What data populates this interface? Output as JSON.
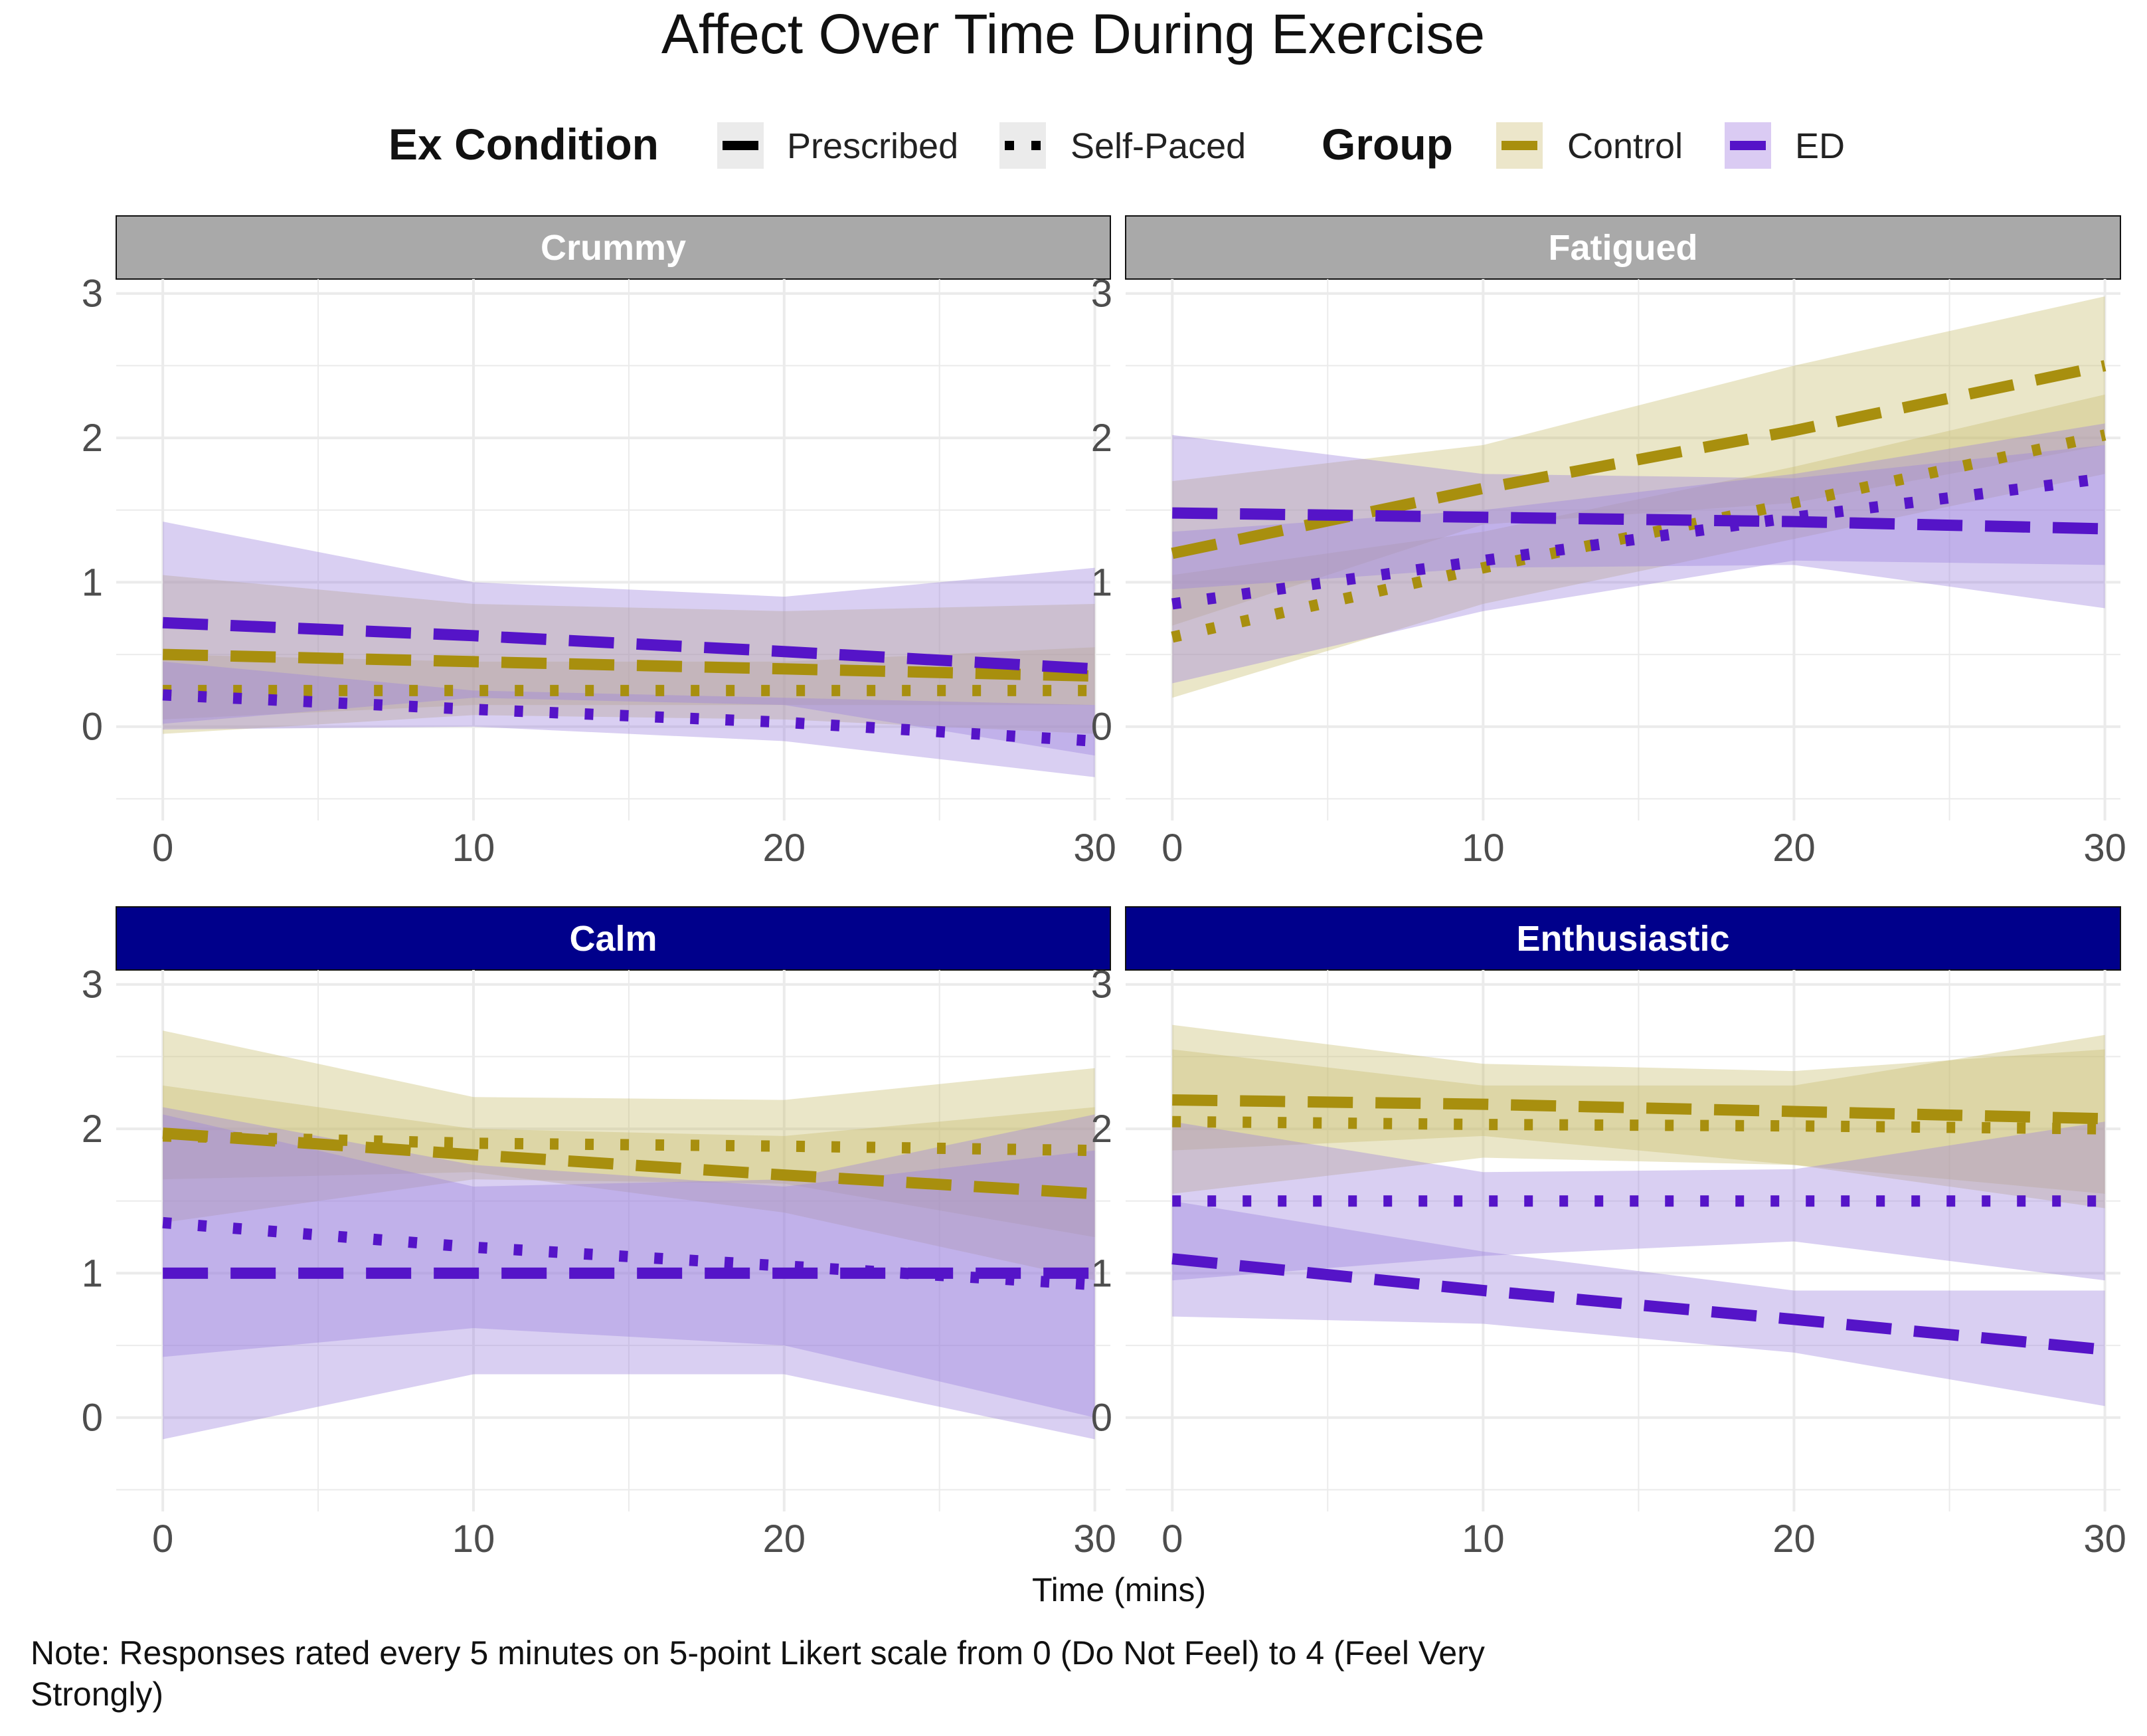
{
  "title": "Affect Over Time During Exercise",
  "legend": {
    "condition_title": "Ex Condition",
    "condition_items": [
      {
        "label": "Prescribed",
        "line": "dashed"
      },
      {
        "label": "Self-Paced",
        "line": "dotted"
      }
    ],
    "group_title": "Group",
    "group_items": [
      {
        "label": "Control",
        "color": "#A88F0E"
      },
      {
        "label": "ED",
        "color": "#5514C8"
      }
    ]
  },
  "xlabel": "Time (mins)",
  "note": "Note: Responses rated every 5 minutes on 5-point Likert scale from 0 (Do Not Feel) to 4 (Feel Very Strongly)",
  "colors": {
    "control": "#A88F0E",
    "ed": "#5514C8",
    "control_ribbon": "#C9BC6E",
    "ed_ribbon": "#9C82DE",
    "strip_negative": "#A9A9A9",
    "strip_positive": "#00008B",
    "grid": "#EBEBEB"
  },
  "chart_data": [
    {
      "type": "line",
      "panel": "Crummy",
      "strip": "negative",
      "x": [
        0,
        10,
        20,
        30
      ],
      "xlim": [
        -1.5,
        30.5
      ],
      "ylim": [
        -0.65,
        3.1
      ],
      "xticks": [
        0,
        10,
        20,
        30
      ],
      "yticks": [
        0,
        1,
        2,
        3
      ],
      "series": [
        {
          "group": "Control",
          "condition": "Prescribed",
          "y": [
            0.5,
            0.45,
            0.4,
            0.35
          ],
          "lower": [
            0.05,
            0.15,
            0.15,
            0.15
          ],
          "upper": [
            1.05,
            0.85,
            0.8,
            0.85
          ]
        },
        {
          "group": "Control",
          "condition": "Self-Paced",
          "y": [
            0.25,
            0.25,
            0.25,
            0.25
          ],
          "lower": [
            -0.05,
            0.08,
            0.05,
            -0.05
          ],
          "upper": [
            0.5,
            0.45,
            0.45,
            0.55
          ]
        },
        {
          "group": "ED",
          "condition": "Prescribed",
          "y": [
            0.72,
            0.63,
            0.52,
            0.4
          ],
          "lower": [
            0.02,
            0.2,
            0.15,
            -0.2
          ],
          "upper": [
            1.42,
            1.0,
            0.9,
            1.1
          ]
        },
        {
          "group": "ED",
          "condition": "Self-Paced",
          "y": [
            0.22,
            0.12,
            0.03,
            -0.1
          ],
          "lower": [
            -0.02,
            0.0,
            -0.1,
            -0.35
          ],
          "upper": [
            0.45,
            0.25,
            0.2,
            0.15
          ]
        }
      ]
    },
    {
      "type": "line",
      "panel": "Fatigued",
      "strip": "negative",
      "x": [
        0,
        10,
        20,
        30
      ],
      "xlim": [
        -1.5,
        30.5
      ],
      "ylim": [
        -0.65,
        3.1
      ],
      "xticks": [
        0,
        10,
        20,
        30
      ],
      "yticks": [
        0,
        1,
        2,
        3
      ],
      "series": [
        {
          "group": "Control",
          "condition": "Prescribed",
          "y": [
            1.2,
            1.65,
            2.05,
            2.5
          ],
          "lower": [
            0.7,
            1.4,
            1.55,
            1.95
          ],
          "upper": [
            1.7,
            1.95,
            2.5,
            2.98
          ]
        },
        {
          "group": "Control",
          "condition": "Self-Paced",
          "y": [
            0.62,
            1.1,
            1.55,
            2.02
          ],
          "lower": [
            0.2,
            0.85,
            1.3,
            1.75
          ],
          "upper": [
            1.05,
            1.35,
            1.8,
            2.3
          ]
        },
        {
          "group": "ED",
          "condition": "Prescribed",
          "y": [
            1.48,
            1.45,
            1.42,
            1.37
          ],
          "lower": [
            0.95,
            1.1,
            1.12,
            0.82
          ],
          "upper": [
            2.02,
            1.75,
            1.72,
            1.95
          ]
        },
        {
          "group": "ED",
          "condition": "Self-Paced",
          "y": [
            0.85,
            1.15,
            1.45,
            1.72
          ],
          "lower": [
            0.3,
            0.8,
            1.15,
            1.12
          ],
          "upper": [
            1.35,
            1.5,
            1.75,
            2.1
          ]
        }
      ]
    },
    {
      "type": "line",
      "panel": "Calm",
      "strip": "positive",
      "x": [
        0,
        10,
        20,
        30
      ],
      "xlim": [
        -1.5,
        30.5
      ],
      "ylim": [
        -0.65,
        3.1
      ],
      "xticks": [
        0,
        10,
        20,
        30
      ],
      "yticks": [
        0,
        1,
        2,
        3
      ],
      "series": [
        {
          "group": "Control",
          "condition": "Prescribed",
          "y": [
            1.97,
            1.82,
            1.68,
            1.55
          ],
          "lower": [
            1.65,
            1.7,
            1.42,
            0.95
          ],
          "upper": [
            2.3,
            2.0,
            1.95,
            2.15
          ]
        },
        {
          "group": "Control",
          "condition": "Self-Paced",
          "y": [
            1.95,
            1.9,
            1.88,
            1.85
          ],
          "lower": [
            1.35,
            1.65,
            1.62,
            1.25
          ],
          "upper": [
            2.68,
            2.22,
            2.2,
            2.42
          ]
        },
        {
          "group": "ED",
          "condition": "Prescribed",
          "y": [
            1.0,
            1.0,
            1.0,
            1.0
          ],
          "lower": [
            -0.15,
            0.3,
            0.3,
            -0.15
          ],
          "upper": [
            2.1,
            1.6,
            1.65,
            2.1
          ]
        },
        {
          "group": "ED",
          "condition": "Self-Paced",
          "y": [
            1.35,
            1.18,
            1.05,
            0.92
          ],
          "lower": [
            0.42,
            0.62,
            0.5,
            0.0
          ],
          "upper": [
            2.15,
            1.75,
            1.6,
            1.85
          ]
        }
      ]
    },
    {
      "type": "line",
      "panel": "Enthusiastic",
      "strip": "positive",
      "x": [
        0,
        10,
        20,
        30
      ],
      "xlim": [
        -1.5,
        30.5
      ],
      "ylim": [
        -0.65,
        3.1
      ],
      "xticks": [
        0,
        10,
        20,
        30
      ],
      "yticks": [
        0,
        1,
        2,
        3
      ],
      "series": [
        {
          "group": "Control",
          "condition": "Prescribed",
          "y": [
            2.2,
            2.17,
            2.12,
            2.07
          ],
          "lower": [
            1.85,
            1.95,
            1.75,
            1.55
          ],
          "upper": [
            2.72,
            2.45,
            2.4,
            2.55
          ]
        },
        {
          "group": "Control",
          "condition": "Self-Paced",
          "y": [
            2.05,
            2.03,
            2.02,
            2.0
          ],
          "lower": [
            1.55,
            1.8,
            1.75,
            1.45
          ],
          "upper": [
            2.55,
            2.3,
            2.3,
            2.65
          ]
        },
        {
          "group": "ED",
          "condition": "Prescribed",
          "y": [
            1.1,
            0.88,
            0.68,
            0.47
          ],
          "lower": [
            0.7,
            0.65,
            0.45,
            0.08
          ],
          "upper": [
            1.5,
            1.15,
            0.88,
            0.88
          ]
        },
        {
          "group": "ED",
          "condition": "Self-Paced",
          "y": [
            1.5,
            1.5,
            1.5,
            1.5
          ],
          "lower": [
            0.95,
            1.12,
            1.22,
            0.95
          ],
          "upper": [
            2.05,
            1.7,
            1.72,
            2.05
          ]
        }
      ]
    }
  ]
}
